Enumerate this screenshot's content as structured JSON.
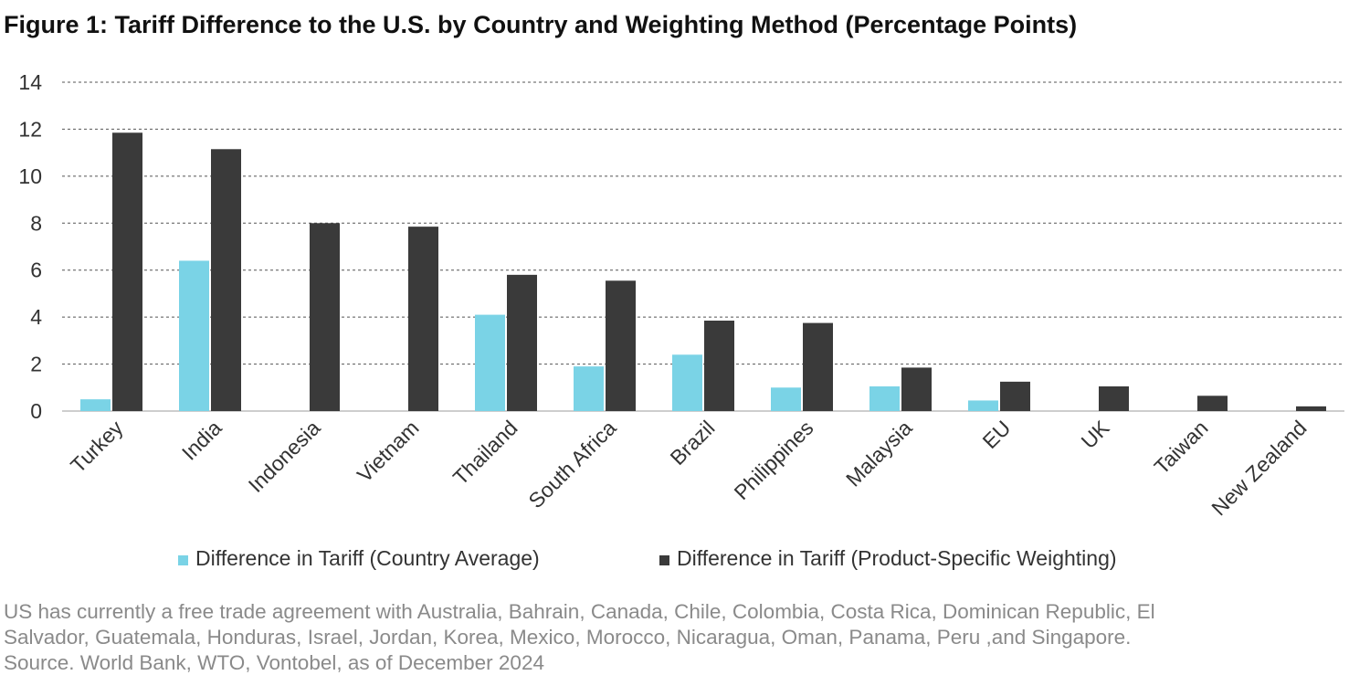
{
  "title": "Figure 1: Tariff Difference to the U.S. by Country and Weighting Method (Percentage Points)",
  "chart_data": {
    "type": "bar",
    "categories": [
      "Turkey",
      "India",
      "Indonesia",
      "Vietnam",
      "Thailand",
      "South Africa",
      "Brazil",
      "Philippines",
      "Malaysia",
      "EU",
      "UK",
      "Taiwan",
      "New Zealand"
    ],
    "series": [
      {
        "name": "Difference in Tariff (Country Average)",
        "color": "#7ad3e6",
        "values": [
          0.5,
          6.4,
          0,
          0,
          4.1,
          1.9,
          2.4,
          1.0,
          1.05,
          0.45,
          0,
          0,
          0
        ]
      },
      {
        "name": "Difference in Tariff (Product-Specific Weighting)",
        "color": "#3a3a3a",
        "values": [
          11.85,
          11.15,
          8.0,
          7.85,
          5.8,
          5.55,
          3.85,
          3.75,
          1.85,
          1.25,
          1.05,
          0.65,
          0.2
        ]
      }
    ],
    "ylim": [
      0,
      14
    ],
    "yticks": [
      0,
      2,
      4,
      6,
      8,
      10,
      12,
      14
    ],
    "grid": "dashed horizontal",
    "legend": "bottom"
  },
  "notes": {
    "line1": "US has currently a free trade agreement with Australia, Bahrain, Canada, Chile, Colombia, Costa Rica, Dominican Republic, El",
    "line2": "Salvador, Guatemala, Honduras, Israel, Jordan, Korea, Mexico, Morocco, Nicaragua, Oman, Panama, Peru ,and Singapore.",
    "line3": "Source. World Bank, WTO, Vontobel, as of December 2024"
  }
}
